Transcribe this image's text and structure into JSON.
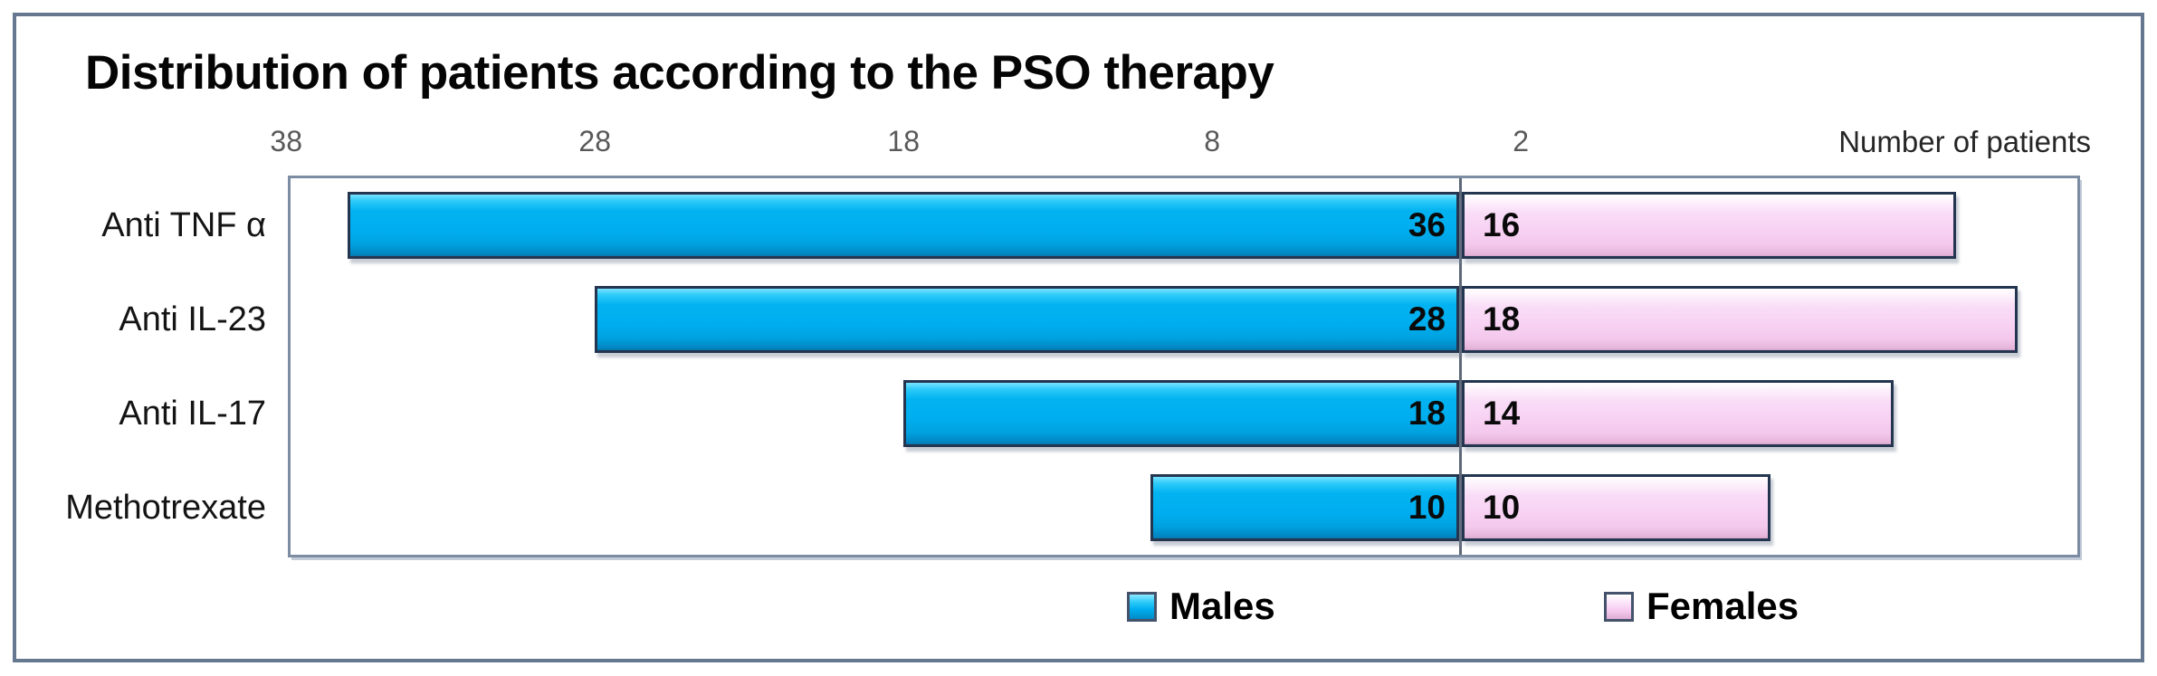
{
  "chart_data": {
    "type": "bar",
    "variant": "horizontal diverging (tornado / pyramid)",
    "title": "Distribution of patients according to the PSO therapy",
    "xlabel": "Number of patients",
    "categories": [
      "Anti TNF α",
      "Anti IL-23",
      "Anti IL-17",
      "Methotrexate"
    ],
    "series": [
      {
        "name": "Males",
        "color": "#00aeef",
        "direction": "left",
        "values": [
          36,
          28,
          18,
          10
        ]
      },
      {
        "name": "Females",
        "color": "#f8d2f3",
        "direction": "right",
        "values": [
          16,
          18,
          14,
          10
        ]
      }
    ],
    "x_tick_labels": [
      "38",
      "28",
      "18",
      "8",
      "2"
    ],
    "tick_step": 10,
    "first_tick_value": 38,
    "data_labels_shown": true,
    "legend_position": "bottom",
    "grid": false,
    "axis_note": "ticks evenly spaced; male side labelled with absolute values, zero line drawn between the two series"
  },
  "colors": {
    "males_bar": "#00aeef",
    "females_bar": "#f8d2f3",
    "frame_border": "#66788f",
    "plot_border": "#7c8ca3",
    "tick_text": "#595959"
  }
}
